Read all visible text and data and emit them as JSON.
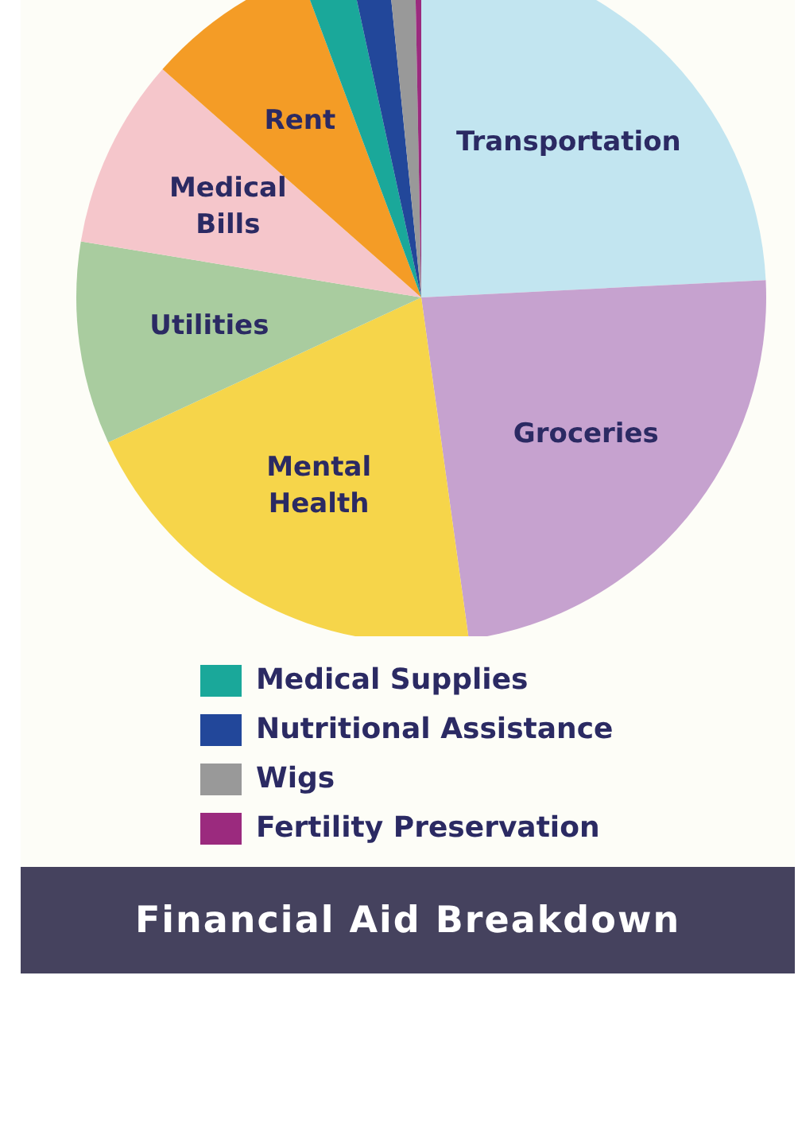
{
  "chart_data": {
    "type": "pie",
    "title": "Financial Aid Breakdown",
    "categories": [
      "Transportation",
      "Groceries",
      "Mental Health",
      "Utilities",
      "Medical Bills",
      "Rent",
      "Medical Supplies",
      "Nutritional Assistance",
      "Wigs",
      "Fertility Preservation"
    ],
    "values": [
      24.2,
      23.6,
      20.3,
      9.5,
      8.9,
      7.8,
      2.3,
      1.8,
      1.3,
      0.3
    ],
    "colors": [
      "#c2e5f0",
      "#c6a2cf",
      "#f6d54a",
      "#a9cc9f",
      "#f5c6cb",
      "#f49c26",
      "#1aa89a",
      "#22479a",
      "#999999",
      "#9b2a7e"
    ],
    "legend": "bottom"
  }
}
